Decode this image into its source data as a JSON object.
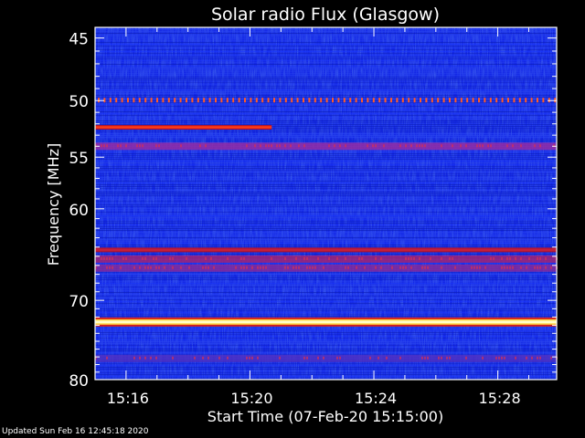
{
  "chart_data": {
    "type": "heatmap",
    "title": "Solar radio Flux (Glasgow)",
    "xlabel": "Start Time (07-Feb-20 15:15:00)",
    "ylabel": "Frequency [MHz]",
    "x_tick_labels": [
      "15:16",
      "15:20",
      "15:24",
      "15:28"
    ],
    "x_tick_minutes": [
      1,
      5,
      9,
      13
    ],
    "x_range_minutes": [
      0,
      14.9
    ],
    "y_ticks": [
      45,
      50,
      55,
      60,
      70,
      80
    ],
    "y_minor_ticks": [
      46,
      47,
      48,
      49,
      51,
      52,
      53,
      54,
      56,
      57,
      58,
      59,
      61,
      62,
      63,
      64,
      65,
      66,
      67,
      68,
      69,
      71,
      72,
      73,
      74,
      75,
      76,
      77,
      78,
      79
    ],
    "ylim": [
      44.2,
      80
    ],
    "y_scale": "log",
    "background_color": "#1428e6",
    "bands": [
      {
        "freq": 50.0,
        "minute_start": 0.0,
        "minute_end": 14.9,
        "style": "dotted",
        "color": "#ff5a28"
      },
      {
        "freq": 52.3,
        "minute_start": 0.0,
        "minute_end": 5.7,
        "style": "solid",
        "color": "#ff3c14"
      },
      {
        "freq": 54.0,
        "minute_start": 0.0,
        "minute_end": 14.9,
        "style": "diffuse",
        "color": "#9a2aa0"
      },
      {
        "freq": 64.3,
        "minute_start": 0.0,
        "minute_end": 14.9,
        "style": "solid",
        "color": "#c41e3c"
      },
      {
        "freq": 65.3,
        "minute_start": 0.0,
        "minute_end": 14.9,
        "style": "diffuse",
        "color": "#a8226e"
      },
      {
        "freq": 66.3,
        "minute_start": 0.0,
        "minute_end": 14.9,
        "style": "diffuse",
        "color": "#8a2a98"
      },
      {
        "freq": 72.6,
        "minute_start": 0.0,
        "minute_end": 14.9,
        "style": "bright",
        "color": "#ffffc8"
      },
      {
        "freq": 77.2,
        "minute_start": 0.0,
        "minute_end": 14.9,
        "style": "diffuse",
        "color": "#5030c0"
      }
    ]
  },
  "footer": {
    "updated_text": "Updated Sun Feb 16 12:45:18 2020"
  }
}
